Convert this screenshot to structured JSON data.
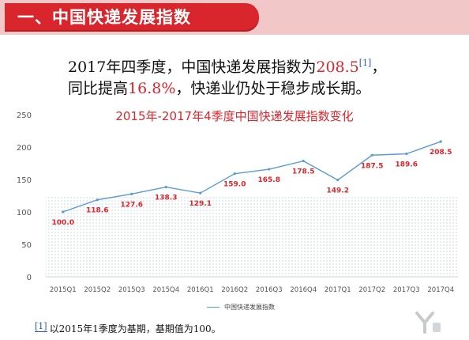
{
  "banner": {
    "title": "一、中国快递发展指数"
  },
  "headline": {
    "line1_prefix": "2017年四季度，中国快递发展指数为",
    "line1_value": "208.5",
    "line1_ref": "[1]",
    "line1_suffix": "，",
    "line2_prefix": "同比提高",
    "line2_value": "16.8%",
    "line2_suffix": "，快递业仍处于稳步成长期。"
  },
  "footnote": {
    "ref": "[1]",
    "text": "以2015年1季度为基期，基期值为100。"
  },
  "colors": {
    "accent": "#d9262c",
    "line": "#5b9bd5",
    "banner_bg": "#f1c7c8",
    "link": "#1f55c8"
  },
  "chart_data": {
    "type": "line",
    "title": "2015年-2017年4季度中国快递发展指数变化",
    "categories": [
      "2015Q1",
      "2015Q2",
      "2015Q3",
      "2015Q4",
      "2016Q1",
      "2016Q2",
      "2016Q3",
      "2016Q4",
      "2017Q1",
      "2017Q2",
      "2017Q3",
      "2017Q4"
    ],
    "series": [
      {
        "name": "中国快递发展指数",
        "values": [
          100.0,
          118.6,
          127.6,
          138.3,
          129.1,
          159.0,
          165.8,
          178.5,
          149.2,
          187.5,
          189.6,
          208.5
        ]
      }
    ],
    "yticks": [
      0,
      50,
      100,
      150,
      200,
      250
    ],
    "ylim": [
      0,
      250
    ],
    "legend": "bottom",
    "grid": false
  }
}
